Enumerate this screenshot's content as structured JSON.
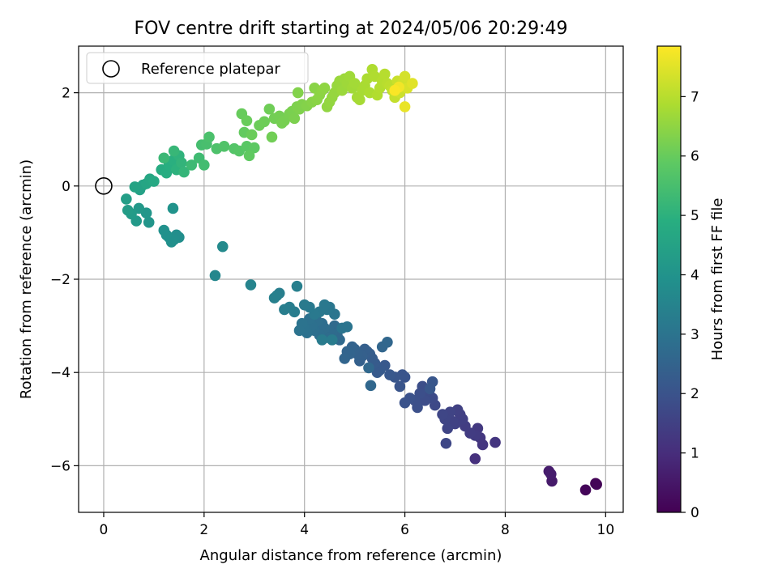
{
  "chart_data": {
    "type": "scatter",
    "title": "FOV centre drift starting at 2024/05/06 20:29:49",
    "xlabel": "Angular distance from reference (arcmin)",
    "ylabel": "Rotation from reference (arcmin)",
    "xlim": [
      -0.5,
      10.35
    ],
    "ylim": [
      -7.0,
      3.0
    ],
    "x_ticks": [
      {
        "value": 0,
        "label": "0"
      },
      {
        "value": 2,
        "label": "2"
      },
      {
        "value": 4,
        "label": "4"
      },
      {
        "value": 6,
        "label": "6"
      },
      {
        "value": 8,
        "label": "8"
      },
      {
        "value": 10,
        "label": "10"
      }
    ],
    "y_ticks": [
      {
        "value": 2,
        "label": "2"
      },
      {
        "value": 0,
        "label": "0"
      },
      {
        "value": -2,
        "label": "−2"
      },
      {
        "value": -4,
        "label": "−4"
      },
      {
        "value": -6,
        "label": "−6"
      }
    ],
    "grid": true,
    "colormap": "viridis",
    "colorbar": {
      "label": "Hours from first FF file",
      "range": [
        0,
        7.85
      ],
      "ticks": [
        {
          "value": 0,
          "label": "0"
        },
        {
          "value": 1,
          "label": "1"
        },
        {
          "value": 2,
          "label": "2"
        },
        {
          "value": 3,
          "label": "3"
        },
        {
          "value": 4,
          "label": "4"
        },
        {
          "value": 5,
          "label": "5"
        },
        {
          "value": 6,
          "label": "6"
        },
        {
          "value": 7,
          "label": "7"
        }
      ]
    },
    "legend": {
      "position": "top-left",
      "entries": [
        {
          "label": "Reference platepar",
          "marker": "open-circle"
        }
      ]
    },
    "reference_point": {
      "x": 0,
      "y": 0
    },
    "series": [
      {
        "color_by": "hours",
        "points": [
          [
            9.8,
            -6.38,
            0.05
          ],
          [
            9.82,
            -6.4,
            0.08
          ],
          [
            9.6,
            -6.52,
            0.12
          ],
          [
            8.93,
            -6.33,
            0.55
          ],
          [
            8.87,
            -6.12,
            0.6
          ],
          [
            8.91,
            -6.18,
            0.62
          ],
          [
            7.4,
            -5.85,
            1.1
          ],
          [
            7.8,
            -5.5,
            1.2
          ],
          [
            7.55,
            -5.55,
            1.22
          ],
          [
            7.5,
            -5.4,
            1.25
          ],
          [
            7.45,
            -5.2,
            1.3
          ],
          [
            7.4,
            -5.35,
            1.35
          ],
          [
            7.3,
            -5.3,
            1.38
          ],
          [
            7.2,
            -5.15,
            1.4
          ],
          [
            7.15,
            -5.0,
            1.45
          ],
          [
            7.1,
            -4.9,
            1.48
          ],
          [
            7.05,
            -4.8,
            1.5
          ],
          [
            7.0,
            -5.1,
            1.52
          ],
          [
            6.95,
            -5.05,
            1.55
          ],
          [
            6.9,
            -4.85,
            1.58
          ],
          [
            6.85,
            -5.2,
            1.6
          ],
          [
            6.8,
            -5.0,
            1.62
          ],
          [
            6.75,
            -4.9,
            1.65
          ],
          [
            6.82,
            -5.52,
            1.68
          ],
          [
            6.6,
            -4.7,
            1.72
          ],
          [
            6.55,
            -4.55,
            1.75
          ],
          [
            6.5,
            -4.5,
            1.78
          ],
          [
            6.45,
            -4.4,
            1.8
          ],
          [
            6.4,
            -4.6,
            1.82
          ],
          [
            6.35,
            -4.3,
            1.85
          ],
          [
            6.3,
            -4.45,
            1.88
          ],
          [
            6.25,
            -4.75,
            1.9
          ],
          [
            6.2,
            -4.6,
            1.92
          ],
          [
            6.1,
            -4.55,
            1.95
          ],
          [
            6.0,
            -4.65,
            1.98
          ],
          [
            6.0,
            -4.1,
            2.0
          ],
          [
            5.95,
            -4.05,
            2.02
          ],
          [
            5.9,
            -4.3,
            2.05
          ],
          [
            5.8,
            -4.1,
            2.08
          ],
          [
            6.55,
            -4.2,
            2.1
          ],
          [
            6.5,
            -4.35,
            2.12
          ],
          [
            5.7,
            -4.05,
            2.15
          ],
          [
            5.6,
            -3.85,
            2.18
          ],
          [
            5.5,
            -3.95,
            2.2
          ],
          [
            5.45,
            -4.0,
            2.22
          ],
          [
            5.4,
            -3.8,
            2.25
          ],
          [
            5.35,
            -3.7,
            2.28
          ],
          [
            5.3,
            -3.6,
            2.3
          ],
          [
            5.25,
            -3.55,
            2.32
          ],
          [
            5.2,
            -3.5,
            2.35
          ],
          [
            5.15,
            -3.65,
            2.38
          ],
          [
            5.1,
            -3.75,
            2.4
          ],
          [
            5.05,
            -3.6,
            2.42
          ],
          [
            5.0,
            -3.5,
            2.45
          ],
          [
            4.95,
            -3.45,
            2.48
          ],
          [
            4.9,
            -3.6,
            2.5
          ],
          [
            4.85,
            -3.55,
            2.52
          ],
          [
            4.8,
            -3.7,
            2.55
          ],
          [
            5.55,
            -3.45,
            2.58
          ],
          [
            5.65,
            -3.35,
            2.6
          ],
          [
            5.32,
            -4.28,
            2.62
          ],
          [
            5.28,
            -3.9,
            2.64
          ],
          [
            4.7,
            -3.3,
            2.66
          ],
          [
            4.65,
            -3.2,
            2.68
          ],
          [
            4.6,
            -3.0,
            2.7
          ],
          [
            4.55,
            -3.15,
            2.72
          ],
          [
            4.5,
            -3.1,
            2.74
          ],
          [
            4.45,
            -3.25,
            2.76
          ],
          [
            4.4,
            -3.05,
            2.78
          ],
          [
            4.35,
            -2.95,
            2.8
          ],
          [
            4.3,
            -3.2,
            2.82
          ],
          [
            4.25,
            -2.9,
            2.84
          ],
          [
            4.2,
            -3.1,
            2.86
          ],
          [
            4.15,
            -3.0,
            2.88
          ],
          [
            4.1,
            -2.85,
            2.9
          ],
          [
            4.05,
            -3.15,
            2.92
          ],
          [
            4.0,
            -3.05,
            2.94
          ],
          [
            3.95,
            -2.95,
            2.96
          ],
          [
            3.9,
            -3.1,
            2.98
          ],
          [
            4.75,
            -3.05,
            3.0
          ],
          [
            4.85,
            -3.02,
            3.02
          ],
          [
            4.6,
            -2.75,
            3.05
          ],
          [
            4.5,
            -2.6,
            3.08
          ],
          [
            4.45,
            -2.65,
            3.1
          ],
          [
            4.4,
            -2.55,
            3.12
          ],
          [
            4.3,
            -2.7,
            3.14
          ],
          [
            4.2,
            -2.75,
            3.16
          ],
          [
            4.1,
            -2.6,
            3.18
          ],
          [
            4.0,
            -2.55,
            3.2
          ],
          [
            4.35,
            -3.3,
            3.22
          ],
          [
            4.55,
            -3.3,
            3.24
          ],
          [
            3.8,
            -2.7,
            3.26
          ],
          [
            3.7,
            -2.6,
            3.28
          ],
          [
            3.6,
            -2.65,
            3.3
          ],
          [
            3.5,
            -2.3,
            3.32
          ],
          [
            3.45,
            -2.35,
            3.34
          ],
          [
            3.85,
            -2.15,
            3.36
          ],
          [
            3.4,
            -2.4,
            3.38
          ],
          [
            2.93,
            -2.12,
            3.5
          ],
          [
            2.22,
            -1.92,
            3.6
          ],
          [
            2.37,
            -1.3,
            3.7
          ],
          [
            1.5,
            -1.1,
            3.82
          ],
          [
            1.45,
            -1.05,
            3.84
          ],
          [
            1.4,
            -1.15,
            3.86
          ],
          [
            1.35,
            -1.2,
            3.88
          ],
          [
            1.3,
            -1.1,
            3.9
          ],
          [
            1.25,
            -1.05,
            3.92
          ],
          [
            1.2,
            -0.95,
            3.94
          ],
          [
            1.38,
            -0.48,
            3.98
          ],
          [
            0.9,
            -0.78,
            4.05
          ],
          [
            0.85,
            -0.58,
            4.1
          ],
          [
            0.7,
            -0.48,
            4.15
          ],
          [
            0.65,
            -0.75,
            4.2
          ],
          [
            0.55,
            -0.6,
            4.25
          ],
          [
            0.48,
            -0.52,
            4.3
          ],
          [
            0.45,
            -0.28,
            4.35
          ],
          [
            0.72,
            -0.08,
            4.45
          ],
          [
            0.78,
            0.02,
            4.5
          ],
          [
            0.62,
            -0.02,
            4.55
          ],
          [
            0.85,
            0.05,
            4.6
          ],
          [
            0.92,
            0.15,
            4.65
          ],
          [
            1.0,
            0.1,
            4.7
          ],
          [
            1.15,
            0.35,
            4.8
          ],
          [
            1.25,
            0.28,
            4.85
          ],
          [
            1.3,
            0.45,
            4.9
          ],
          [
            1.38,
            0.55,
            4.95
          ],
          [
            1.45,
            0.35,
            5.0
          ],
          [
            1.5,
            0.65,
            5.05
          ],
          [
            1.55,
            0.5,
            5.1
          ],
          [
            1.6,
            0.3,
            5.15
          ],
          [
            1.4,
            0.75,
            5.2
          ],
          [
            1.2,
            0.6,
            5.25
          ],
          [
            1.75,
            0.45,
            5.3
          ],
          [
            1.9,
            0.6,
            5.35
          ],
          [
            2.0,
            0.45,
            5.4
          ],
          [
            1.95,
            0.88,
            5.45
          ],
          [
            2.05,
            0.9,
            5.5
          ],
          [
            2.1,
            1.05,
            5.55
          ],
          [
            2.25,
            0.8,
            5.6
          ],
          [
            2.4,
            0.85,
            5.65
          ],
          [
            2.6,
            0.8,
            5.7
          ],
          [
            2.7,
            0.75,
            5.75
          ],
          [
            2.85,
            0.85,
            5.8
          ],
          [
            3.0,
            0.82,
            5.85
          ],
          [
            2.9,
            0.65,
            5.9
          ],
          [
            2.8,
            1.15,
            5.95
          ],
          [
            2.75,
            1.55,
            6.0
          ],
          [
            2.85,
            1.4,
            6.02
          ],
          [
            2.95,
            1.1,
            6.04
          ],
          [
            3.1,
            1.3,
            6.06
          ],
          [
            3.2,
            1.38,
            6.08
          ],
          [
            3.3,
            1.65,
            6.1
          ],
          [
            3.35,
            1.05,
            6.12
          ],
          [
            3.4,
            1.45,
            6.14
          ],
          [
            3.5,
            1.5,
            6.16
          ],
          [
            3.55,
            1.35,
            6.18
          ],
          [
            3.6,
            1.4,
            6.2
          ],
          [
            3.7,
            1.55,
            6.22
          ],
          [
            3.75,
            1.6,
            6.24
          ],
          [
            3.8,
            1.45,
            6.26
          ],
          [
            3.85,
            1.7,
            6.28
          ],
          [
            3.9,
            1.65,
            6.3
          ],
          [
            3.95,
            1.75,
            6.32
          ],
          [
            3.87,
            2.0,
            6.34
          ],
          [
            4.05,
            1.72,
            6.36
          ],
          [
            4.15,
            1.8,
            6.4
          ],
          [
            4.2,
            2.1,
            6.42
          ],
          [
            4.25,
            1.85,
            6.44
          ],
          [
            4.3,
            1.95,
            6.46
          ],
          [
            4.35,
            2.05,
            6.48
          ],
          [
            4.4,
            2.1,
            6.5
          ],
          [
            4.45,
            1.7,
            6.52
          ],
          [
            4.5,
            1.8,
            6.54
          ],
          [
            4.55,
            1.9,
            6.56
          ],
          [
            4.6,
            2.0,
            6.58
          ],
          [
            4.65,
            2.15,
            6.6
          ],
          [
            4.7,
            2.25,
            6.62
          ],
          [
            4.75,
            2.05,
            6.64
          ],
          [
            4.8,
            2.3,
            6.66
          ],
          [
            4.85,
            2.2,
            6.68
          ],
          [
            4.9,
            2.35,
            6.7
          ],
          [
            4.95,
            2.1,
            6.72
          ],
          [
            5.0,
            2.2,
            6.74
          ],
          [
            5.05,
            1.9,
            6.76
          ],
          [
            5.1,
            1.85,
            6.78
          ],
          [
            5.15,
            2.05,
            6.8
          ],
          [
            5.2,
            2.15,
            6.82
          ],
          [
            5.25,
            2.3,
            6.84
          ],
          [
            5.3,
            2.0,
            6.86
          ],
          [
            5.35,
            2.5,
            6.88
          ],
          [
            5.4,
            2.35,
            6.9
          ],
          [
            5.45,
            1.95,
            6.92
          ],
          [
            5.5,
            2.1,
            6.94
          ],
          [
            5.55,
            2.25,
            6.96
          ],
          [
            5.6,
            2.4,
            6.98
          ],
          [
            5.65,
            2.2,
            7.0
          ],
          [
            5.7,
            2.15,
            7.05
          ],
          [
            5.75,
            2.05,
            7.1
          ],
          [
            5.8,
            1.9,
            7.15
          ],
          [
            5.85,
            2.25,
            7.2
          ],
          [
            5.9,
            2.0,
            7.25
          ],
          [
            5.95,
            2.2,
            7.3
          ],
          [
            6.0,
            2.35,
            7.35
          ],
          [
            6.05,
            2.1,
            7.4
          ],
          [
            6.15,
            2.2,
            7.5
          ],
          [
            6.0,
            1.7,
            7.6
          ],
          [
            5.88,
            2.12,
            7.7
          ],
          [
            5.8,
            2.05,
            7.8
          ]
        ]
      }
    ]
  }
}
